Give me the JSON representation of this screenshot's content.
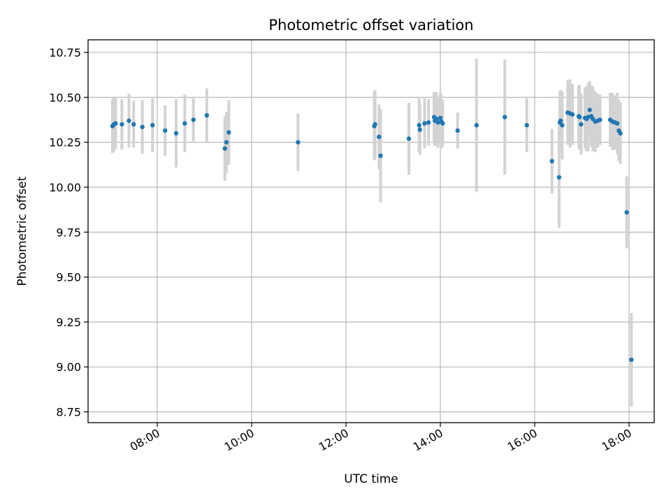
{
  "chart_data": {
    "type": "scatter",
    "title": "Photometric offset variation",
    "xlabel": "UTC time",
    "ylabel": "Photometric offset",
    "xlim": [
      "06:32",
      "18:32"
    ],
    "ylim": [
      8.69,
      10.82
    ],
    "x_ticks": [
      "08:00",
      "10:00",
      "12:00",
      "14:00",
      "16:00",
      "18:00"
    ],
    "y_ticks": [
      "8.75",
      "9.00",
      "9.25",
      "9.50",
      "9.75",
      "10.00",
      "10.25",
      "10.50",
      "10.75"
    ],
    "grid": true,
    "colors": {
      "marker": "#1f77b4",
      "errorbar": "#d3d3d3",
      "grid": "#b0b0b0"
    },
    "points": [
      {
        "t": "07:03",
        "y": 10.34,
        "err": 0.15
      },
      {
        "t": "07:05",
        "y": 10.35,
        "err": 0.15
      },
      {
        "t": "07:07",
        "y": 10.355,
        "err": 0.14
      },
      {
        "t": "07:15",
        "y": 10.35,
        "err": 0.14
      },
      {
        "t": "07:24",
        "y": 10.37,
        "err": 0.15
      },
      {
        "t": "07:30",
        "y": 10.35,
        "err": 0.13
      },
      {
        "t": "07:41",
        "y": 10.335,
        "err": 0.15
      },
      {
        "t": "07:54",
        "y": 10.345,
        "err": 0.15
      },
      {
        "t": "08:10",
        "y": 10.315,
        "err": 0.14
      },
      {
        "t": "08:24",
        "y": 10.3,
        "err": 0.19
      },
      {
        "t": "08:35",
        "y": 10.355,
        "err": 0.16
      },
      {
        "t": "08:46",
        "y": 10.375,
        "err": 0.12
      },
      {
        "t": "09:03",
        "y": 10.4,
        "err": 0.15
      },
      {
        "t": "09:26",
        "y": 10.215,
        "err": 0.18
      },
      {
        "t": "09:28",
        "y": 10.25,
        "err": 0.17
      },
      {
        "t": "09:31",
        "y": 10.305,
        "err": 0.18
      },
      {
        "t": "10:59",
        "y": 10.25,
        "err": 0.16
      },
      {
        "t": "12:36",
        "y": 10.34,
        "err": 0.19
      },
      {
        "t": "12:37",
        "y": 10.35,
        "err": 0.19
      },
      {
        "t": "12:42",
        "y": 10.28,
        "err": 0.18
      },
      {
        "t": "12:44",
        "y": 10.175,
        "err": 0.26
      },
      {
        "t": "13:20",
        "y": 10.27,
        "err": 0.2
      },
      {
        "t": "13:33",
        "y": 10.345,
        "err": 0.15
      },
      {
        "t": "13:34",
        "y": 10.32,
        "err": 0.14
      },
      {
        "t": "13:40",
        "y": 10.355,
        "err": 0.14
      },
      {
        "t": "13:45",
        "y": 10.36,
        "err": 0.13
      },
      {
        "t": "13:52",
        "y": 10.39,
        "err": 0.14
      },
      {
        "t": "13:53",
        "y": 10.37,
        "err": 0.14
      },
      {
        "t": "13:55",
        "y": 10.38,
        "err": 0.15
      },
      {
        "t": "13:57",
        "y": 10.36,
        "err": 0.14
      },
      {
        "t": "14:00",
        "y": 10.385,
        "err": 0.14
      },
      {
        "t": "14:01",
        "y": 10.365,
        "err": 0.15
      },
      {
        "t": "14:03",
        "y": 10.355,
        "err": 0.13
      },
      {
        "t": "14:22",
        "y": 10.315,
        "err": 0.1
      },
      {
        "t": "14:46",
        "y": 10.345,
        "err": 0.37
      },
      {
        "t": "15:22",
        "y": 10.39,
        "err": 0.32
      },
      {
        "t": "15:50",
        "y": 10.345,
        "err": 0.15
      },
      {
        "t": "16:22",
        "y": 10.145,
        "err": 0.18
      },
      {
        "t": "16:31",
        "y": 10.055,
        "err": 0.28
      },
      {
        "t": "16:32",
        "y": 10.36,
        "err": 0.17
      },
      {
        "t": "16:33",
        "y": 10.37,
        "err": 0.17
      },
      {
        "t": "16:35",
        "y": 10.345,
        "err": 0.19
      },
      {
        "t": "16:42",
        "y": 10.415,
        "err": 0.18
      },
      {
        "t": "16:45",
        "y": 10.41,
        "err": 0.19
      },
      {
        "t": "16:48",
        "y": 10.405,
        "err": 0.17
      },
      {
        "t": "16:56",
        "y": 10.395,
        "err": 0.17
      },
      {
        "t": "16:57",
        "y": 10.39,
        "err": 0.18
      },
      {
        "t": "16:59",
        "y": 10.35,
        "err": 0.17
      },
      {
        "t": "17:04",
        "y": 10.385,
        "err": 0.17
      },
      {
        "t": "17:06",
        "y": 10.38,
        "err": 0.18
      },
      {
        "t": "17:08",
        "y": 10.39,
        "err": 0.19
      },
      {
        "t": "17:10",
        "y": 10.43,
        "err": 0.16
      },
      {
        "t": "17:12",
        "y": 10.395,
        "err": 0.17
      },
      {
        "t": "17:14",
        "y": 10.38,
        "err": 0.18
      },
      {
        "t": "17:17",
        "y": 10.365,
        "err": 0.17
      },
      {
        "t": "17:20",
        "y": 10.37,
        "err": 0.15
      },
      {
        "t": "17:23",
        "y": 10.375,
        "err": 0.14
      },
      {
        "t": "17:36",
        "y": 10.375,
        "err": 0.15
      },
      {
        "t": "17:39",
        "y": 10.365,
        "err": 0.16
      },
      {
        "t": "17:42",
        "y": 10.36,
        "err": 0.15
      },
      {
        "t": "17:45",
        "y": 10.355,
        "err": 0.17
      },
      {
        "t": "17:47",
        "y": 10.315,
        "err": 0.17
      },
      {
        "t": "17:49",
        "y": 10.3,
        "err": 0.17
      },
      {
        "t": "17:57",
        "y": 9.86,
        "err": 0.2
      },
      {
        "t": "18:03",
        "y": 9.04,
        "err": 0.26
      }
    ]
  }
}
